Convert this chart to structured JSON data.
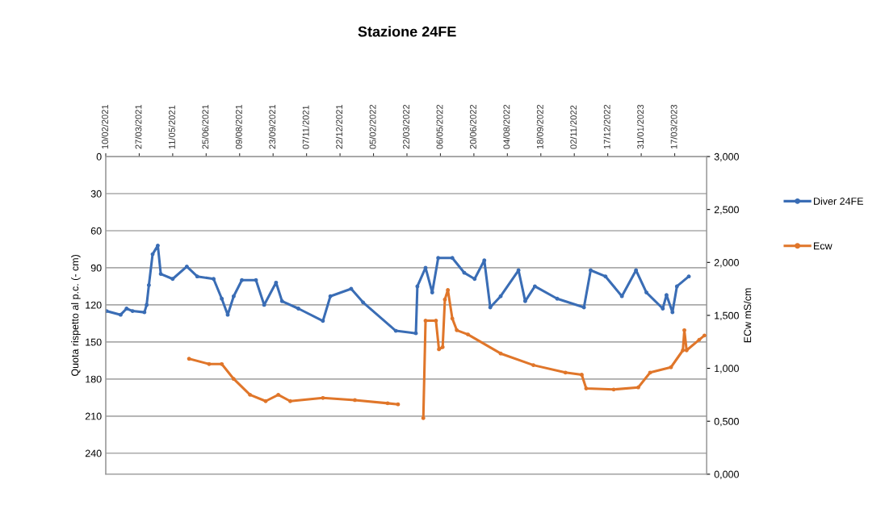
{
  "chart_data": {
    "type": "line",
    "title": "Stazione 24FE",
    "ylabel": "Quota rispetto al p.c. (- cm)",
    "y2label": "ECw mS/cm",
    "xlim": [
      "2021-02-10",
      "2023-04-29"
    ],
    "xticks": [
      {
        "value": "2021-02-10",
        "label": "10/02/2021"
      },
      {
        "value": "2021-03-27",
        "label": "27/03/2021"
      },
      {
        "value": "2021-05-11",
        "label": "11/05/2021"
      },
      {
        "value": "2021-06-25",
        "label": "25/06/2021"
      },
      {
        "value": "2021-08-09",
        "label": "09/08/2021"
      },
      {
        "value": "2021-09-23",
        "label": "23/09/2021"
      },
      {
        "value": "2021-11-07",
        "label": "07/11/2021"
      },
      {
        "value": "2021-12-22",
        "label": "22/12/2021"
      },
      {
        "value": "2022-02-05",
        "label": "05/02/2022"
      },
      {
        "value": "2022-03-22",
        "label": "22/03/2022"
      },
      {
        "value": "2022-05-06",
        "label": "06/05/2022"
      },
      {
        "value": "2022-06-20",
        "label": "20/06/2022"
      },
      {
        "value": "2022-08-04",
        "label": "04/08/2022"
      },
      {
        "value": "2022-09-18",
        "label": "18/09/2022"
      },
      {
        "value": "2022-11-02",
        "label": "02/11/2022"
      },
      {
        "value": "2022-12-17",
        "label": "17/12/2022"
      },
      {
        "value": "2023-01-31",
        "label": "31/01/2023"
      },
      {
        "value": "2023-03-17",
        "label": "17/03/2023"
      }
    ],
    "ylim": [
      257,
      0
    ],
    "yticks": [
      0,
      30,
      60,
      90,
      120,
      150,
      180,
      210,
      240
    ],
    "y2lim": [
      0,
      3
    ],
    "y2ticks": [
      {
        "value": 0,
        "label": "0,000"
      },
      {
        "value": 0.5,
        "label": "0,500"
      },
      {
        "value": 1,
        "label": "1,000"
      },
      {
        "value": 1.5,
        "label": "1,500"
      },
      {
        "value": 2,
        "label": "2,000"
      },
      {
        "value": 2.5,
        "label": "2,500"
      },
      {
        "value": 3,
        "label": "3,000"
      }
    ],
    "grid": "y",
    "legend": "right",
    "marker": "circle",
    "line_style": "solid",
    "series": [
      {
        "name": "Diver 24FE",
        "color": "#3a6db5",
        "x": [
          "2021-02-11",
          "2021-03-02",
          "2021-03-10",
          "2021-03-18",
          "2021-04-03",
          "2021-04-06",
          "2021-04-09",
          "2021-04-14",
          "2021-04-21",
          "2021-04-25",
          "2021-05-11",
          "2021-05-30",
          "2021-06-13",
          "2021-07-05",
          "2021-07-16",
          "2021-07-24",
          "2021-08-01",
          "2021-08-12",
          "2021-08-31",
          "2021-09-11",
          "2021-09-27",
          "2021-10-05",
          "2021-10-27",
          "2021-11-29",
          "2021-12-09",
          "2022-01-06",
          "2022-01-22",
          "2022-03-07",
          "2022-04-03",
          "2022-04-05",
          "2022-04-16",
          "2022-04-25",
          "2022-05-03",
          "2022-05-22",
          "2022-06-07",
          "2022-06-21",
          "2022-07-04",
          "2022-07-12",
          "2022-07-26",
          "2022-08-19",
          "2022-08-28",
          "2022-09-10",
          "2022-10-10",
          "2022-11-15",
          "2022-11-24",
          "2022-12-14",
          "2023-01-05",
          "2023-01-24",
          "2023-02-07",
          "2023-03-01",
          "2023-03-06",
          "2023-03-14",
          "2023-03-20",
          "2023-04-05"
        ],
        "values": [
          125,
          128,
          123,
          125,
          126,
          120,
          104,
          79,
          72,
          95,
          99,
          89,
          97,
          99,
          115,
          128,
          113,
          100,
          100,
          120,
          102,
          117,
          123,
          133,
          113,
          107,
          118,
          141,
          143,
          105,
          90,
          110,
          82,
          82,
          94,
          99,
          84,
          122,
          113,
          92,
          117,
          105,
          115,
          122,
          92,
          97,
          113,
          92,
          110,
          123,
          112,
          126,
          105,
          97
        ]
      },
      {
        "name": "Ecw",
        "color": "#e0762a",
        "axis": "y2",
        "x": [
          "2021-06-02",
          "2021-06-29",
          "2021-07-16",
          "2021-08-01",
          "2021-08-23",
          "2021-09-13",
          "2021-09-30",
          "2021-10-16",
          "2021-11-29",
          "2022-01-11",
          "2022-02-24",
          "2022-03-10",
          "2022-03-25",
          "2022-04-13",
          "2022-04-16",
          "2022-04-30",
          "2022-05-04",
          "2022-05-09",
          "2022-05-12",
          "2022-05-16",
          "2022-05-22",
          "2022-05-28",
          "2022-06-12",
          "2022-07-26",
          "2022-09-08",
          "2022-10-21",
          "2022-11-12",
          "2022-11-18",
          "2022-12-25",
          "2023-01-27",
          "2023-02-12",
          "2023-03-12",
          "2023-03-28",
          "2023-03-30",
          "2023-04-02",
          "2023-04-19",
          "2023-04-26"
        ],
        "values": [
          1.09,
          1.04,
          1.04,
          0.9,
          0.75,
          0.69,
          0.75,
          0.69,
          0.72,
          0.7,
          0.67,
          0.66,
          null,
          0.53,
          1.45,
          1.45,
          1.18,
          1.2,
          1.65,
          1.74,
          1.47,
          1.36,
          1.32,
          1.14,
          1.03,
          0.96,
          0.94,
          0.81,
          0.8,
          0.82,
          0.96,
          1.01,
          1.17,
          1.36,
          1.17,
          1.27,
          1.31
        ]
      }
    ]
  }
}
